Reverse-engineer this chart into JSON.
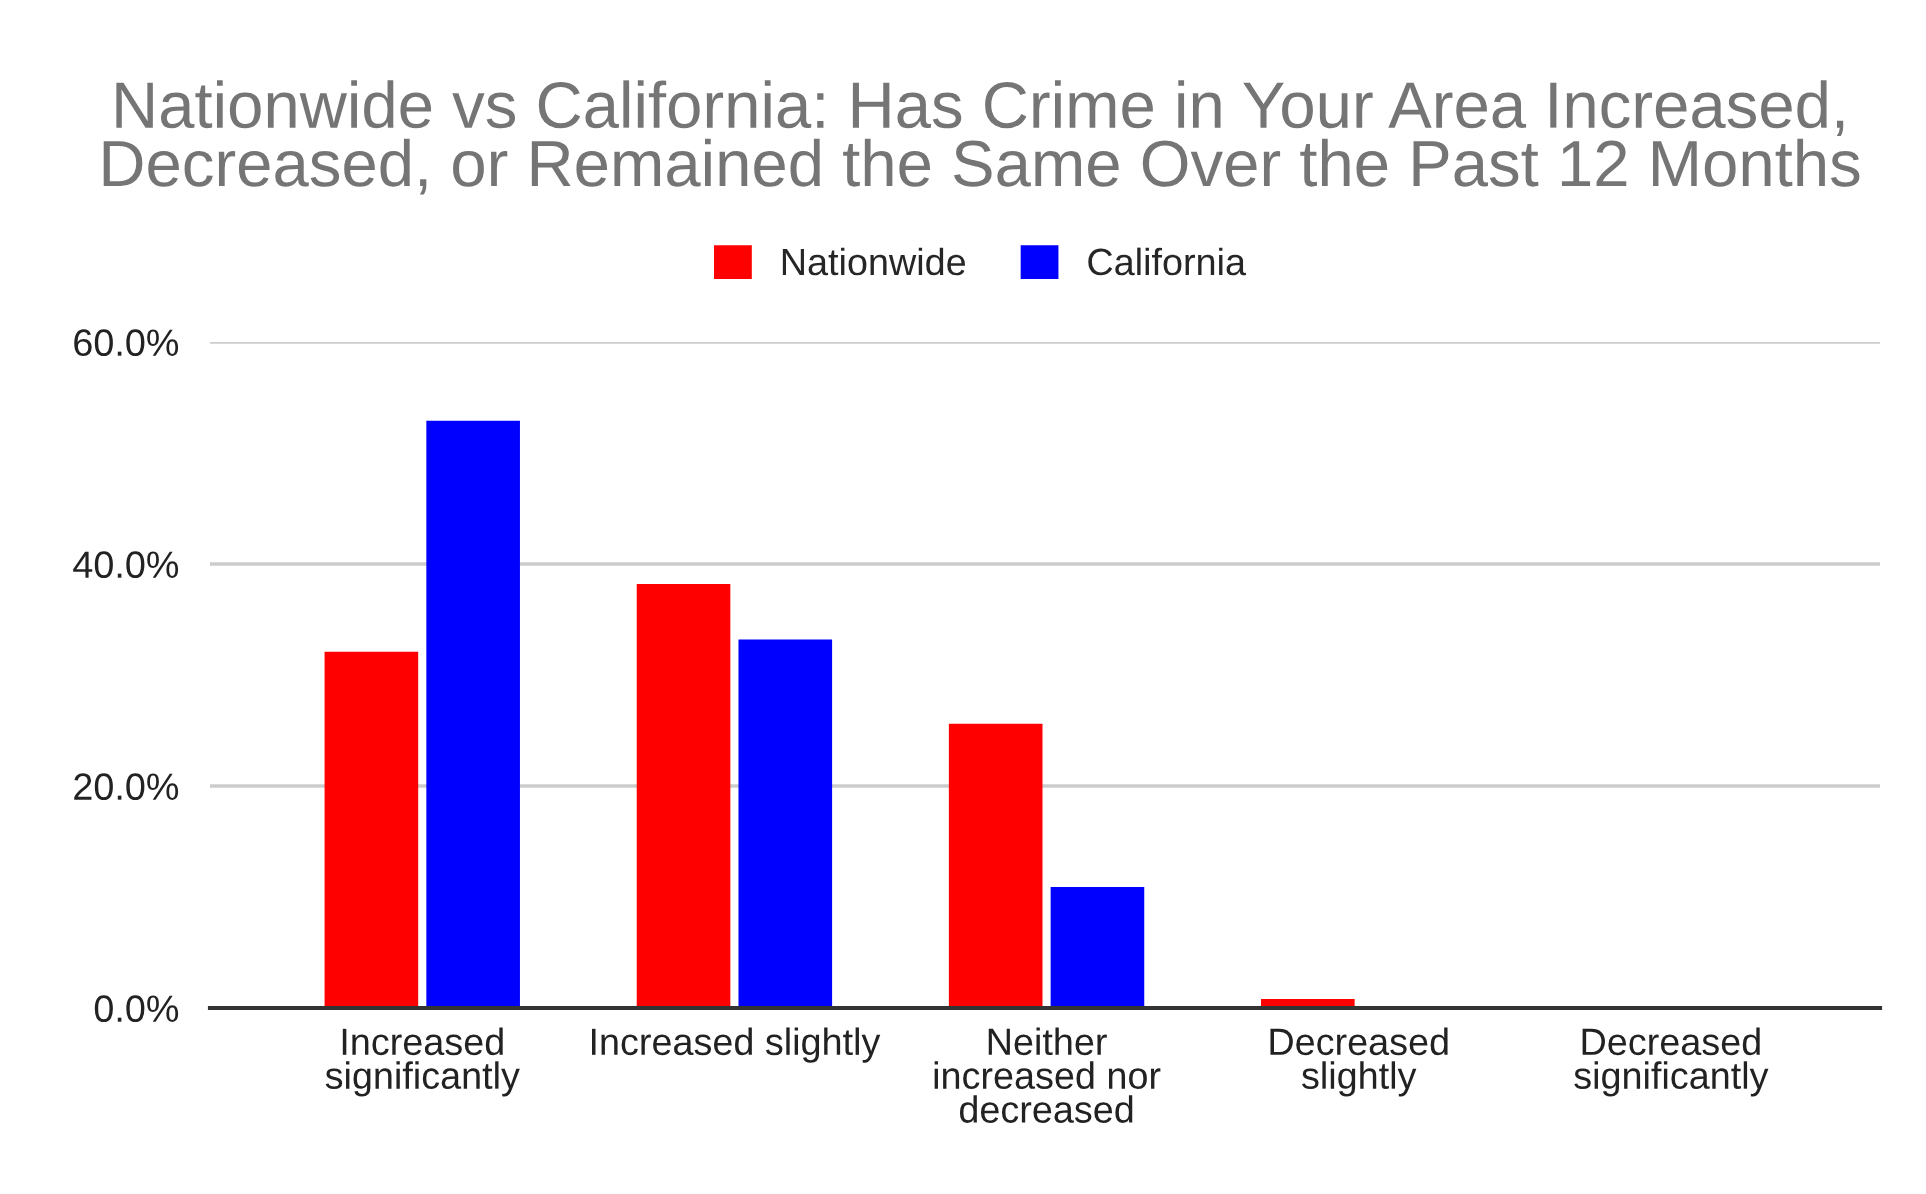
{
  "chart_data": {
    "type": "bar",
    "title": "Nationwide vs California: Has Crime in Your Area Increased, Decreased, or Remained the Same Over the Past 12 Months",
    "categories": [
      "Increased\nsignificantly",
      "Increased slightly",
      "Neither\nincreased nor\ndecreased",
      "Decreased\nslightly",
      "Decreased\nsignificantly"
    ],
    "series": [
      {
        "name": "Nationwide",
        "color": "#ff0000",
        "values": [
          32.1,
          38.2,
          25.6,
          0.8,
          0
        ]
      },
      {
        "name": "California",
        "color": "#0000ff",
        "values": [
          52.9,
          33.2,
          10.9,
          0,
          0
        ]
      }
    ],
    "ylim": [
      0,
      60
    ],
    "yticks": [
      {
        "value": 0,
        "label": "0.0%"
      },
      {
        "value": 20,
        "label": "20.0%"
      },
      {
        "value": 40,
        "label": "40.0%"
      },
      {
        "value": 60,
        "label": "60.0%"
      }
    ],
    "grid": "y",
    "legend": "top"
  }
}
